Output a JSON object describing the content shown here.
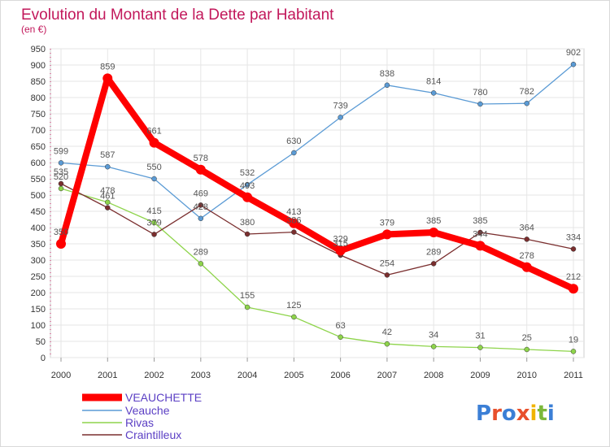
{
  "chart_data": {
    "type": "line",
    "title": "Evolution du Montant de la Dette par Habitant",
    "subtitle": "(en €)",
    "x": [
      "2000",
      "2001",
      "2002",
      "2003",
      "2004",
      "2005",
      "2006",
      "2007",
      "2008",
      "2009",
      "2010",
      "2011"
    ],
    "ylim": [
      0,
      950
    ],
    "yticks": [
      0,
      50,
      100,
      150,
      200,
      250,
      300,
      350,
      400,
      450,
      500,
      550,
      600,
      650,
      700,
      750,
      800,
      850,
      900,
      950
    ],
    "grid": true,
    "legend_position": "bottom-left",
    "series": [
      {
        "name": "VEAUCHETTE",
        "color": "#ff0000",
        "values": [
          350,
          859,
          661,
          578,
          493,
          413,
          329,
          379,
          385,
          344,
          278,
          212
        ]
      },
      {
        "name": "Veauche",
        "color": "#5b9bd5",
        "values": [
          599,
          587,
          550,
          428,
          532,
          630,
          739,
          838,
          814,
          780,
          782,
          902
        ]
      },
      {
        "name": "Rivas",
        "color": "#8ed44b",
        "values": [
          520,
          478,
          415,
          289,
          155,
          125,
          63,
          42,
          34,
          31,
          25,
          19
        ]
      },
      {
        "name": "Craintilleux",
        "color": "#7a2e2e",
        "values": [
          535,
          461,
          379,
          469,
          380,
          386,
          315,
          254,
          289,
          385,
          364,
          334
        ]
      }
    ]
  },
  "logo": {
    "text": "Proxiti"
  },
  "colors": {
    "background": "#ffffff",
    "frame": "#d9d9d9",
    "title": "#c2185b",
    "grid": "#e6e6e6",
    "axis_text": "#333333",
    "value_text": "#555555",
    "legend_text": "#5b3fc4"
  }
}
